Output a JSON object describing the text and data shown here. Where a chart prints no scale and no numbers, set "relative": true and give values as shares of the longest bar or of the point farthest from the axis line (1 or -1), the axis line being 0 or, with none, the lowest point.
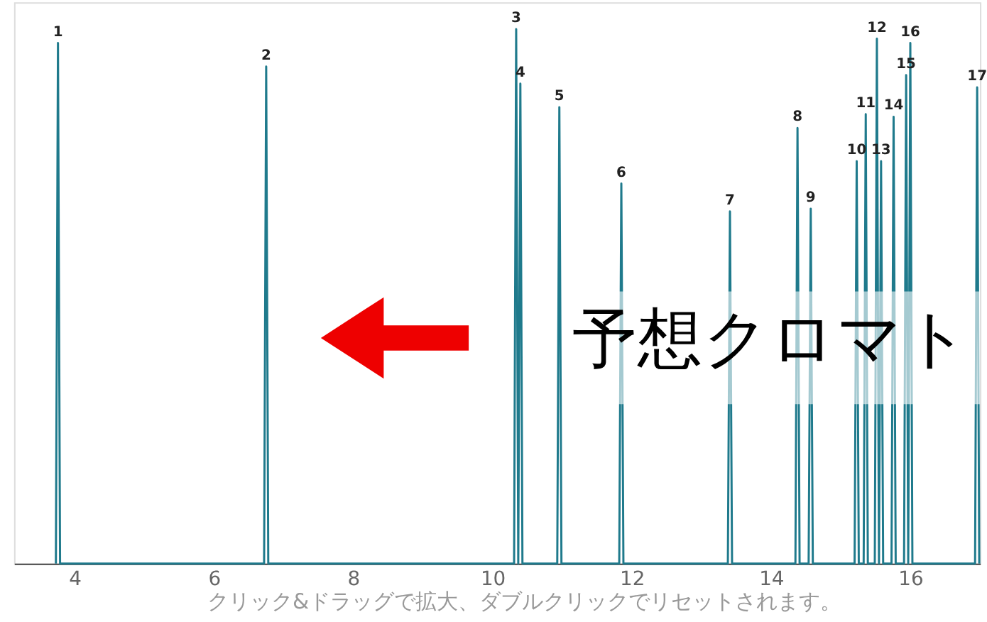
{
  "chart_data": {
    "type": "line",
    "relative": true,
    "color": "#1f7a8c",
    "grid": false,
    "marker": "none",
    "tick_labels": "x",
    "xlim": [
      3.13,
      17.0
    ],
    "xticks": [
      4,
      6,
      8,
      10,
      12,
      14,
      16
    ],
    "x": [
      3.73,
      3.76,
      3.79,
      6.72,
      6.75,
      6.78,
      10.31,
      10.34,
      10.37,
      10.4,
      10.43,
      10.93,
      10.96,
      10.99,
      11.82,
      11.85,
      11.88,
      13.38,
      13.41,
      13.44,
      14.35,
      14.38,
      14.41,
      14.54,
      14.57,
      14.6,
      15.2,
      15.23,
      15.26,
      15.33,
      15.36,
      15.39,
      15.49,
      15.52,
      15.55,
      15.58,
      15.61,
      15.73,
      15.76,
      15.79,
      15.91,
      15.94,
      15.97,
      16.0,
      16.03,
      16.93,
      16.96,
      16.99
    ],
    "values": [
      0,
      0.974,
      0,
      0,
      0.93,
      0,
      0,
      1,
      0,
      0.898,
      0,
      0,
      0.854,
      0,
      0,
      0.711,
      0,
      0,
      0.659,
      0,
      0,
      0.815,
      0,
      0,
      0.664,
      0,
      0,
      0.753,
      0,
      0,
      0.841,
      0,
      0,
      0.982,
      0,
      0.753,
      0,
      0,
      0.836,
      0,
      0,
      0.914,
      0,
      0.974,
      0,
      0,
      0.891,
      0
    ],
    "annotations": [
      {
        "text": "1",
        "x": 3.76,
        "y": 0.974
      },
      {
        "text": "2",
        "x": 6.75,
        "y": 0.93
      },
      {
        "text": "3",
        "x": 10.34,
        "y": 1
      },
      {
        "text": "4",
        "x": 10.4,
        "y": 0.898
      },
      {
        "text": "5",
        "x": 10.96,
        "y": 0.854
      },
      {
        "text": "6",
        "x": 11.85,
        "y": 0.711
      },
      {
        "text": "7",
        "x": 13.41,
        "y": 0.659
      },
      {
        "text": "8",
        "x": 14.38,
        "y": 0.815
      },
      {
        "text": "9",
        "x": 14.57,
        "y": 0.664
      },
      {
        "text": "10",
        "x": 15.23,
        "y": 0.753
      },
      {
        "text": "11",
        "x": 15.36,
        "y": 0.841
      },
      {
        "text": "12",
        "x": 15.52,
        "y": 0.982
      },
      {
        "text": "13",
        "x": 15.58,
        "y": 0.753
      },
      {
        "text": "14",
        "x": 15.76,
        "y": 0.836
      },
      {
        "text": "15",
        "x": 15.94,
        "y": 0.914
      },
      {
        "text": "16",
        "x": 16.0,
        "y": 0.974
      },
      {
        "text": "17",
        "x": 16.96,
        "y": 0.891
      },
      "予想クロマト",
      "クリック&ドラッグで拡大、ダブルクリックでリセットされます。"
    ]
  }
}
